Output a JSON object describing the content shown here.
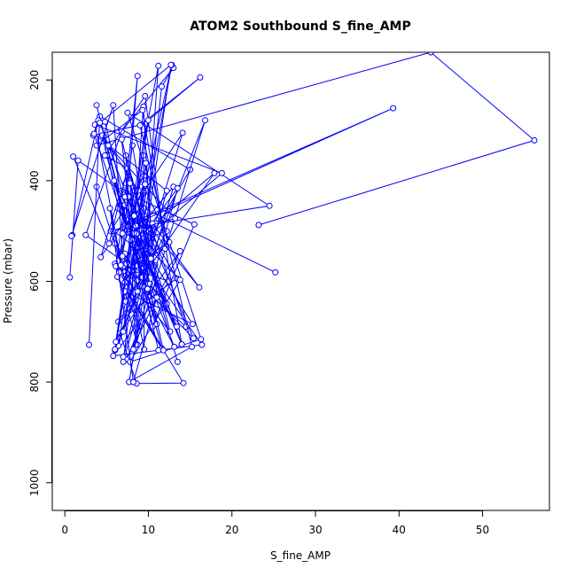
{
  "chart_data": {
    "type": "line",
    "title": "ATOM2 Southbound S_fine_AMP",
    "xlabel": "S_fine_AMP",
    "ylabel": "Pressure (mbar)",
    "xlim": [
      -1.5,
      58
    ],
    "ylim": [
      1055,
      145
    ],
    "y_reversed": true,
    "x_ticks": [
      0,
      10,
      20,
      30,
      40,
      50
    ],
    "y_ticks": [
      200,
      400,
      600,
      800,
      1000
    ],
    "x_tick_labels": [
      "0",
      "10",
      "20",
      "30",
      "40",
      "50"
    ],
    "y_tick_labels": [
      "200",
      "400",
      "600",
      "800",
      "1000"
    ],
    "grid": false,
    "legend": "none",
    "marker": "open-circle",
    "colors": {
      "series": "#0000ff",
      "axis": "#000000",
      "background": "#ffffff"
    },
    "series": [
      {
        "x": [
          3.8,
          7.2,
          10.8,
          6.4,
          13.4,
          9.5,
          15.4,
          7.0,
          12.5,
          5.8,
          16.4,
          8.5,
          11.6,
          6.3,
          9.0,
          7.4,
          13.8,
          6.6,
          8.6,
          14.2,
          7.5,
          9.8,
          6.0,
          8.7,
          7.8,
          11.0,
          6.8,
          9.2,
          14.0,
          7.3,
          13.5
        ],
        "y": [
          412,
          590,
          568,
          680,
          594,
          482,
          713,
          570,
          600,
          748,
          726,
          538,
          733,
          591,
          690,
          755,
          540,
          703,
          803,
          802,
          620,
          420,
          565,
          726,
          398,
          685,
          460,
          540,
          725,
          405,
          760
        ]
      },
      {
        "x": [
          25.2,
          9.5,
          14.5,
          7.0,
          12.5,
          9.2,
          5.5,
          24.5,
          7.5,
          16.3,
          7.8,
          13.8,
          8.2,
          6.0,
          7.2,
          15.3,
          9.6,
          8.8,
          10.2,
          9.2,
          6.4,
          4.7,
          8.0,
          5.2
        ],
        "y": [
          582,
          455,
          690,
          580,
          522,
          402,
          500,
          450,
          265,
          715,
          760,
          597,
          505,
          737,
          620,
          685,
          535,
          578,
          495,
          558,
          455,
          312,
          525,
          340
        ]
      },
      {
        "x": [
          2.9,
          4.2,
          15.0,
          7.2,
          3.6,
          18.8,
          8.5,
          9.4,
          7.0,
          13.0,
          8.6,
          6.4,
          10.2,
          8.1,
          6.1,
          12.6,
          8.4,
          9.5
        ],
        "y": [
          726,
          272,
          378,
          602,
          289,
          385,
          532,
          420,
          760,
          412,
          500,
          728,
          537,
          330,
          570,
          700,
          420,
          390
        ]
      },
      {
        "x": [
          0.9,
          4.0,
          3.4,
          9.7,
          7.4,
          2.5,
          6.8,
          13.0,
          11.6,
          9.7,
          17.9,
          7.3,
          9.1,
          3.8,
          7.6,
          5.0,
          4.5,
          8.8
        ],
        "y": [
          508,
          280,
          310,
          287,
          565,
          508,
          302,
          176,
          213,
          500,
          385,
          640,
          590,
          250,
          502,
          350,
          310,
          420
        ]
      },
      {
        "x": [
          0.6,
          1.6,
          6.7,
          15.5,
          10.5,
          8.3,
          5.8,
          39.3,
          7.6,
          12.2,
          6.0,
          8.7,
          14.1,
          4.3,
          6.6
        ],
        "y": [
          592,
          360,
          420,
          487,
          690,
          530,
          500,
          256,
          492,
          645,
          525,
          598,
          305,
          552,
          425
        ]
      },
      {
        "x": [
          11.2,
          8.2,
          13.1,
          7.2,
          9.5,
          9.4,
          6.0,
          16.8,
          8.5,
          7.3,
          10.4,
          9.4,
          8.2,
          12.2,
          9.3,
          4.8
        ],
        "y": [
          737,
          520,
          730,
          545,
          735,
          350,
          735,
          280,
          726,
          350,
          540,
          253,
          526,
          500,
          592,
          283
        ]
      },
      {
        "x": [
          23.2,
          56.2,
          43.8,
          3.8,
          9.3,
          14.0,
          7.2,
          6.5,
          11.8,
          7.6,
          10.2,
          13.4,
          8.6
        ],
        "y": [
          488,
          320,
          145,
          330,
          260,
          725,
          448,
          580,
          737,
          432,
          605,
          690,
          505
        ]
      },
      {
        "x": [
          1.0,
          5.3,
          7.5,
          4.8,
          9.6,
          12.0,
          6.5,
          11.2,
          9.3,
          6.1,
          10.0,
          16.2,
          9.0,
          15.2,
          7.7,
          10.9,
          8.0
        ],
        "y": [
          352,
          525,
          375,
          350,
          232,
          535,
          582,
          172,
          610,
          720,
          280,
          195,
          290,
          730,
          800,
          485,
          518
        ]
      },
      {
        "x": [
          0.8,
          5.8,
          6.9,
          8.7,
          7.2,
          16.1,
          10.5,
          8.2,
          13.5,
          6.7,
          5.4,
          8.2,
          11.0,
          9.7,
          7.0,
          12.8,
          8.5,
          7.8
        ],
        "y": [
          510,
          250,
          550,
          192,
          432,
          612,
          485,
          735,
          415,
          568,
          455,
          800,
          632,
          365,
          700,
          170,
          490,
          405
        ]
      },
      {
        "x": [
          7.0,
          12.2,
          3.5,
          9.9,
          5.9,
          10.3,
          6.8,
          8.7,
          12.7,
          4.2,
          8.3,
          5.2,
          13.2,
          6.9,
          9.6
        ],
        "y": [
          750,
          420,
          307,
          615,
          400,
          555,
          318,
          620,
          170,
          285,
          470,
          330,
          475,
          505,
          407
        ]
      }
    ]
  }
}
